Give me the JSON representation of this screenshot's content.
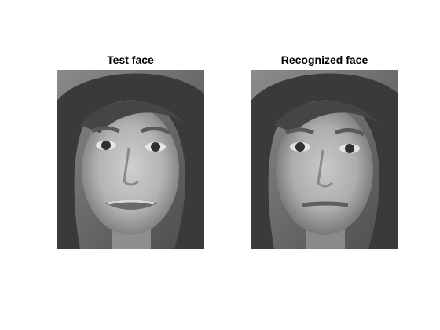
{
  "figure": {
    "background": "#ffffff",
    "panels": [
      {
        "title": "Test face",
        "image": "grayscale-face-photo",
        "expression": "grimace"
      },
      {
        "title": "Recognized face",
        "image": "grayscale-face-photo",
        "expression": "neutral"
      }
    ]
  }
}
